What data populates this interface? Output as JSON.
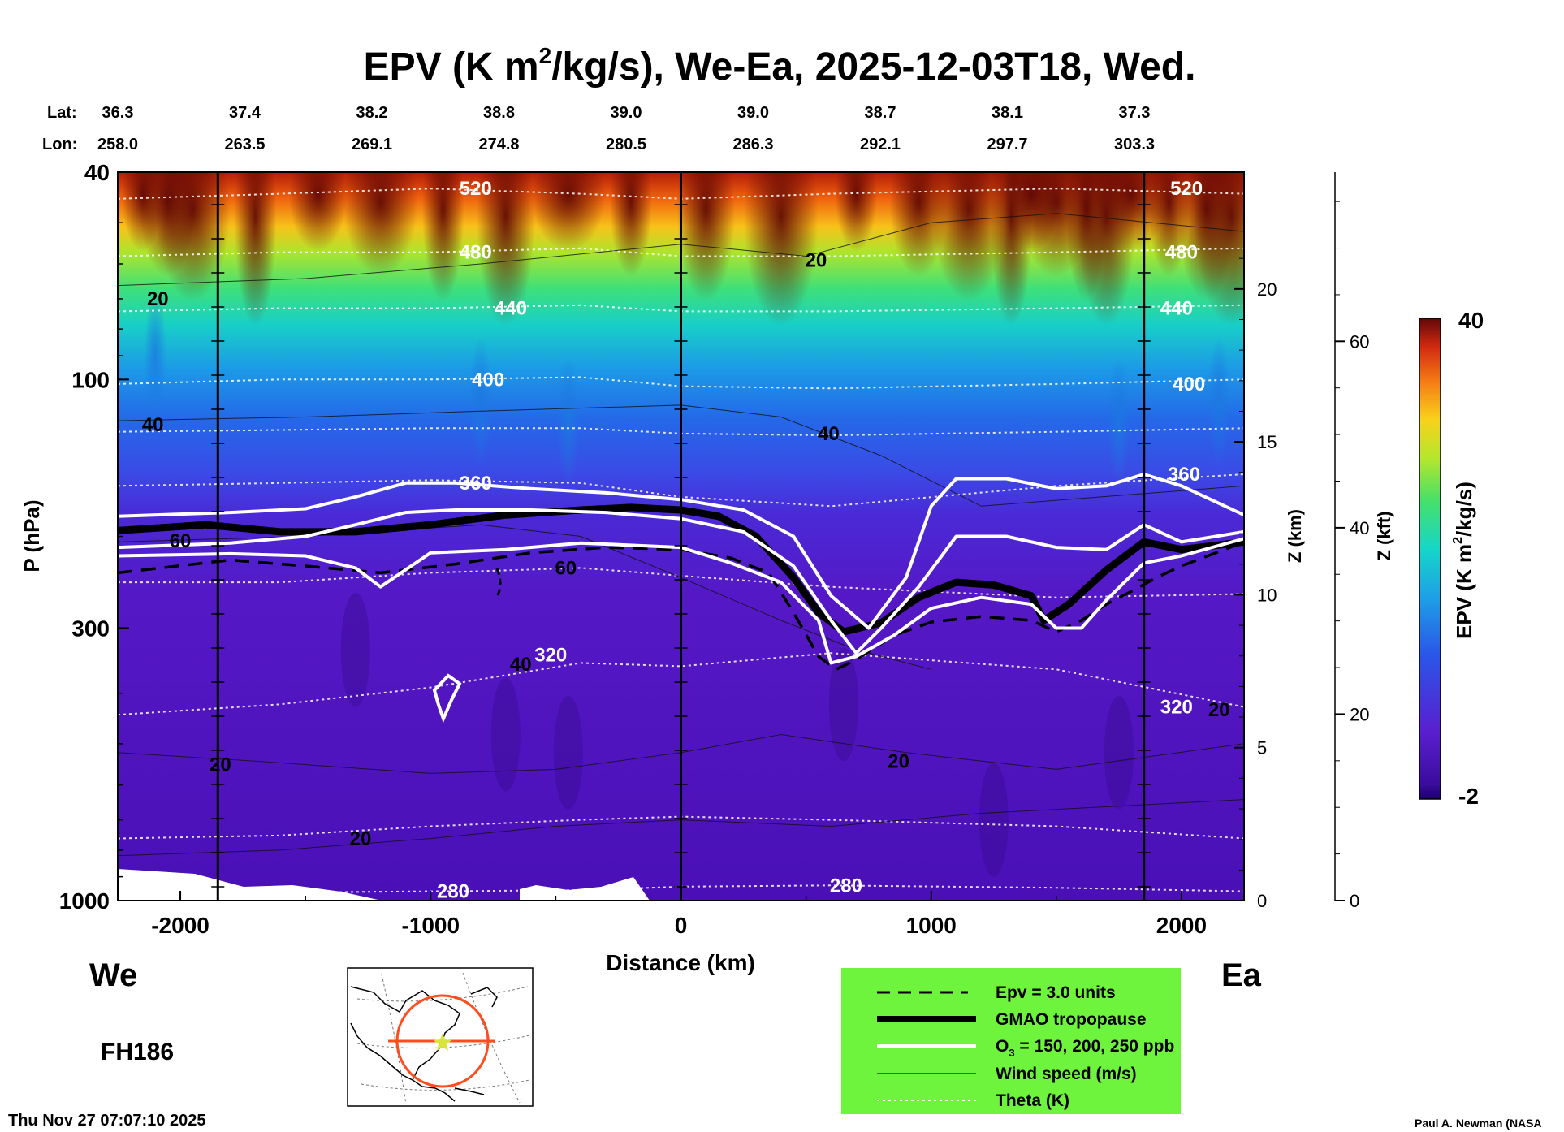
{
  "chart_data": {
    "type": "cross-section contour",
    "title_main": "EPV (K m",
    "title_sup": "2",
    "title_rest": "/kg/s), We-Ea, 2025-12-03T18, Wed.",
    "lat_label": "Lat:",
    "lon_label": "Lon:",
    "lat_values": [
      "36.3",
      "37.4",
      "38.2",
      "38.8",
      "39.0",
      "39.0",
      "38.7",
      "38.1",
      "37.3"
    ],
    "lon_values": [
      "258.0",
      "263.5",
      "269.1",
      "274.8",
      "280.5",
      "286.3",
      "292.1",
      "297.7",
      "303.3"
    ],
    "xlabel": "Distance (km)",
    "xlim": [
      -2250,
      2250
    ],
    "x_ticks": [
      -2000,
      -1000,
      0,
      1000,
      2000
    ],
    "x_tick_labels": [
      "-2000",
      "-1000",
      "0",
      "1000",
      "2000"
    ],
    "ylabel": "P (hPa)",
    "ylim": [
      1000,
      40
    ],
    "y_ticks": [
      40,
      100,
      300,
      1000
    ],
    "y_tick_labels": [
      "40",
      "100",
      "300",
      "1000"
    ],
    "z_km_label": "Z (km)",
    "z_km_ticks": [
      0,
      5,
      10,
      15,
      20
    ],
    "z_km_tick_labels": [
      "0",
      "5",
      "10",
      "15",
      "20"
    ],
    "z_kft_label": "Z (kft)",
    "z_kft_ticks": [
      0,
      20,
      40,
      60
    ],
    "z_kft_tick_labels": [
      "0",
      "20",
      "40",
      "60"
    ],
    "vertical_markers_km": [
      -1850,
      0,
      1850
    ],
    "colorbar": {
      "label_main": "EPV (K m",
      "label_sup": "2",
      "label_rest": "/kg/s)",
      "max_label": "40",
      "min_label": "-2",
      "range": [
        -2,
        40
      ]
    },
    "theta_labels": [
      {
        "value": "520",
        "x": -820,
        "p": 43
      },
      {
        "value": "480",
        "x": -820,
        "p": 57
      },
      {
        "value": "440",
        "x": -680,
        "p": 73
      },
      {
        "value": "400",
        "x": -770,
        "p": 100
      },
      {
        "value": "360",
        "x": -820,
        "p": 158
      },
      {
        "value": "320",
        "x": -520,
        "p": 338
      },
      {
        "value": "280",
        "x": -910,
        "p": 960
      },
      {
        "value": "280",
        "x": 660,
        "p": 935
      },
      {
        "value": "520",
        "x": 2020,
        "p": 43
      },
      {
        "value": "480",
        "x": 2000,
        "p": 57
      },
      {
        "value": "440",
        "x": 1980,
        "p": 73
      },
      {
        "value": "400",
        "x": 2030,
        "p": 102
      },
      {
        "value": "360",
        "x": 2010,
        "p": 152
      },
      {
        "value": "320",
        "x": 1980,
        "p": 425
      }
    ],
    "wind_labels": [
      {
        "value": "20",
        "x": -2090,
        "p": 70
      },
      {
        "value": "40",
        "x": -2110,
        "p": 122
      },
      {
        "value": "60",
        "x": -2000,
        "p": 204
      },
      {
        "value": "60",
        "x": -460,
        "p": 230
      },
      {
        "value": "40",
        "x": -640,
        "p": 352
      },
      {
        "value": "20",
        "x": -1840,
        "p": 548
      },
      {
        "value": "20",
        "x": -1280,
        "p": 760
      },
      {
        "value": "40",
        "x": 590,
        "p": 127
      },
      {
        "value": "20",
        "x": 540,
        "p": 59
      },
      {
        "value": "20",
        "x": 870,
        "p": 540
      },
      {
        "value": "20",
        "x": 2150,
        "p": 430
      }
    ],
    "legend": [
      {
        "label": "Epv = 3.0 units",
        "style": "dashed"
      },
      {
        "label": "GMAO tropopause",
        "style": "thick"
      },
      {
        "label_main": "O",
        "label_sub": "3",
        "label_rest": " = 150, 200, 250 ppb",
        "style": "white"
      },
      {
        "label": "Wind speed (m/s)",
        "style": "thin"
      },
      {
        "label": "Theta (K)",
        "style": "dotted"
      }
    ],
    "series": [
      {
        "name": "GMAO tropopause",
        "x": [
          -2250,
          -1900,
          -1600,
          -1300,
          -1000,
          -700,
          -400,
          -200,
          0,
          150,
          300,
          450,
          550,
          650,
          800,
          950,
          1100,
          1250,
          1400,
          1450,
          1550,
          1700,
          1850,
          2000,
          2250
        ],
        "p": [
          195,
          190,
          196,
          196,
          190,
          182,
          178,
          176,
          178,
          183,
          200,
          240,
          280,
          305,
          293,
          262,
          245,
          248,
          260,
          290,
          270,
          232,
          205,
          212,
          205
        ]
      },
      {
        "name": "EPV 3.0",
        "x": [
          -2250,
          -1800,
          -1500,
          -1200,
          -900,
          -600,
          -300,
          0,
          200,
          350,
          450,
          550,
          620,
          700,
          850,
          1000,
          1200,
          1400,
          1500,
          1600,
          1700,
          1800,
          1900,
          2000,
          2250
        ],
        "p": [
          235,
          222,
          228,
          235,
          226,
          215,
          210,
          212,
          220,
          235,
          280,
          340,
          360,
          345,
          310,
          292,
          285,
          290,
          305,
          290,
          270,
          255,
          240,
          228,
          205
        ]
      },
      {
        "name": "O3 150",
        "x": [
          -2250,
          -1800,
          -1500,
          -1300,
          -1100,
          -900,
          -600,
          -300,
          0,
          250,
          450,
          600,
          750,
          900,
          1000,
          1100,
          1300,
          1500,
          1700,
          1850,
          2000,
          2250
        ],
        "p": [
          183,
          180,
          177,
          168,
          158,
          158,
          162,
          165,
          170,
          178,
          200,
          260,
          300,
          240,
          175,
          155,
          155,
          162,
          160,
          152,
          160,
          182
        ]
      },
      {
        "name": "O3 200",
        "x": [
          -2250,
          -1800,
          -1500,
          -1300,
          -1100,
          -900,
          -600,
          -300,
          0,
          250,
          450,
          600,
          700,
          800,
          950,
          1100,
          1300,
          1500,
          1700,
          1850,
          2000,
          2250
        ],
        "p": [
          210,
          206,
          200,
          190,
          180,
          178,
          178,
          180,
          185,
          196,
          228,
          290,
          335,
          300,
          250,
          200,
          200,
          210,
          212,
          190,
          205,
          196
        ]
      },
      {
        "name": "O3 250",
        "x": [
          -2250,
          -1800,
          -1500,
          -1300,
          -1200,
          -1000,
          -700,
          -400,
          0,
          200,
          400,
          550,
          600,
          700,
          850,
          1000,
          1200,
          1400,
          1500,
          1600,
          1700,
          1850,
          2000,
          2250
        ],
        "p": [
          218,
          216,
          218,
          230,
          250,
          215,
          212,
          206,
          210,
          225,
          245,
          290,
          350,
          340,
          310,
          275,
          262,
          270,
          300,
          300,
          265,
          225,
          218,
          202
        ]
      }
    ]
  },
  "footer": {
    "left_direction": "We",
    "right_direction": "Ea",
    "forecast_hour": "FH186",
    "timestamp": "Thu Nov 27 07:07:10 2025",
    "credit": "Paul A. Newman (NASA"
  },
  "colors": {
    "legend_bg": "#6ef43c",
    "inset_circle": "#ff4c1c",
    "star": "#d8e43a"
  }
}
